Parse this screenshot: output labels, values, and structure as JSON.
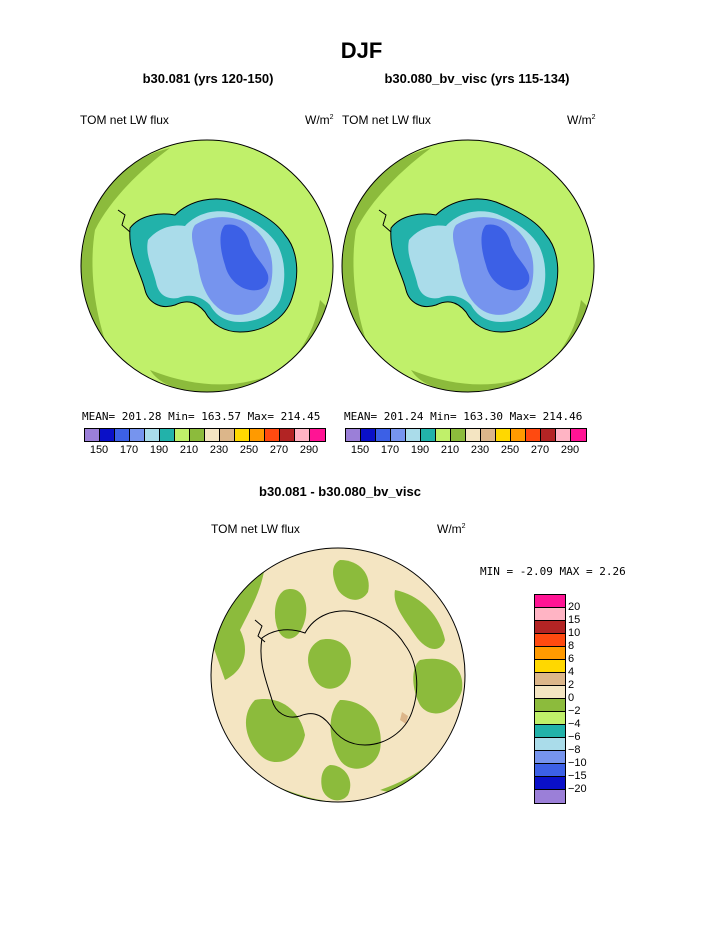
{
  "title": "DJF",
  "panel_left": {
    "subtitle": "b30.081 (yrs 120-150)",
    "variable": "TOM net LW flux",
    "units_base": "W/m",
    "units_exp": "2",
    "stats": "MEAN= 201.28  Min= 163.57  Max= 214.45"
  },
  "panel_right": {
    "subtitle": "b30.080_bv_visc (yrs 115-134)",
    "variable": "TOM net LW flux",
    "units_base": "W/m",
    "units_exp": "2",
    "stats": "MEAN= 201.24  Min= 163.30  Max= 214.46"
  },
  "panel_diff": {
    "subtitle": "b30.081 - b30.080_bv_visc",
    "variable": "TOM net LW flux",
    "units_base": "W/m",
    "units_exp": "2",
    "stats": "MIN =  -2.09 MAX =    2.26"
  },
  "colorbar_main": {
    "colors": [
      "#9b7fd8",
      "#0a10c8",
      "#3c60e6",
      "#7694ee",
      "#aadcea",
      "#22b2aa",
      "#c0f06a",
      "#8cbb3c",
      "#f4e5c2",
      "#dcb68a",
      "#ffd800",
      "#ff9a00",
      "#ff4a10",
      "#b22424",
      "#ffb4c4",
      "#ff1494"
    ],
    "labels": [
      "150",
      "170",
      "190",
      "210",
      "230",
      "250",
      "270",
      "290"
    ]
  },
  "colorbar_diff": {
    "colors": [
      "#ff1494",
      "#ffb4c4",
      "#b22424",
      "#ff4a10",
      "#ff9a00",
      "#ffd800",
      "#dcb68a",
      "#f4e5c2",
      "#8cbb3c",
      "#c0f06a",
      "#22b2aa",
      "#aadcea",
      "#7694ee",
      "#3c60e6",
      "#0a10c8",
      "#9b7fd8"
    ],
    "labels": [
      "20",
      "15",
      "10",
      "8",
      "6",
      "4",
      "2",
      "0",
      "−2",
      "−4",
      "−6",
      "−8",
      "−10",
      "−15",
      "−20"
    ]
  }
}
